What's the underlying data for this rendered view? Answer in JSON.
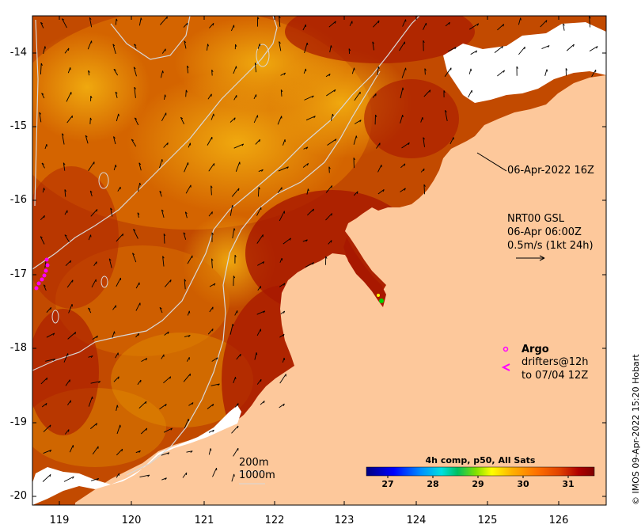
{
  "map": {
    "y_ticks": [
      "-14",
      "-15",
      "-16",
      "-17",
      "-18",
      "-19",
      "-20"
    ],
    "x_ticks": [
      "119",
      "120",
      "121",
      "122",
      "123",
      "124",
      "125",
      "126"
    ],
    "lat_range": [
      -20.05,
      -13.5
    ],
    "lon_range": [
      118.65,
      126.75
    ]
  },
  "annotations": {
    "timestamp": "06-Apr-2022 16Z",
    "current_model": "NRT00 GSL",
    "current_time": "06-Apr 06:00Z",
    "current_scale": "0.5m/s (1kt 24h)",
    "argo_label": "Argo",
    "drifters_label": "drifters@12h",
    "drifters_time": "to 07/04 12Z",
    "depth_200": "200m",
    "depth_1000": "1000m"
  },
  "colorbar": {
    "title": "4h comp, p50, All Sats",
    "ticks": [
      "27",
      "28",
      "29",
      "30",
      "31"
    ],
    "range": [
      26.6,
      31.7
    ],
    "colors": [
      "#00007f",
      "#0000ff",
      "#0080ff",
      "#00e0e0",
      "#00c060",
      "#80e000",
      "#ffff00",
      "#ffb000",
      "#ff7000",
      "#e04000",
      "#b00000",
      "#7f0000"
    ]
  },
  "colors": {
    "land": "#fdc89b",
    "sea_warm": "#a81800",
    "sea_mid": "#d46000",
    "sea_cool": "#f0a000",
    "cloud": "#ffffff",
    "argo": "#ff00ff"
  },
  "credit": "© IMOS 09-Apr-2022 15:20 Hobart"
}
